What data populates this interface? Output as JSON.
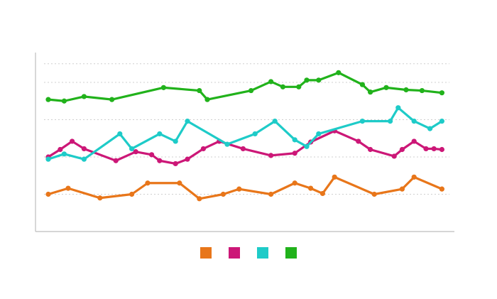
{
  "chart_data": {
    "type": "line",
    "title": "",
    "xlabel": "",
    "ylabel": "",
    "ylim": [
      0,
      240
    ],
    "xlim": [
      0,
      100
    ],
    "grid": true,
    "legend_position": "bottom-center",
    "series": [
      {
        "color": "#e8761a",
        "x": [
          0,
          5,
          13,
          21,
          25,
          33,
          38,
          44,
          48,
          56,
          62,
          66,
          69,
          72,
          82,
          89,
          92,
          99
        ],
        "y": [
          50,
          58,
          45,
          50,
          65,
          65,
          44,
          50,
          57,
          50,
          65,
          58,
          51,
          73,
          50,
          57,
          73,
          57
        ]
      },
      {
        "color": "#cc1777",
        "x": [
          0,
          3,
          6,
          9,
          17,
          22,
          26,
          28,
          32,
          35,
          39,
          43,
          49,
          56,
          62,
          66,
          72,
          78,
          81,
          87,
          89,
          92,
          95,
          97,
          99
        ],
        "y": [
          100,
          110,
          121,
          111,
          95,
          107,
          103,
          95,
          91,
          97,
          111,
          121,
          111,
          102,
          105,
          120,
          135,
          121,
          110,
          101,
          110,
          121,
          111,
          111,
          110
        ]
      },
      {
        "color": "#1ecbc8",
        "x": [
          0,
          4,
          9,
          18,
          21,
          28,
          32,
          35,
          45,
          52,
          57,
          62,
          65,
          68,
          79,
          86,
          88,
          92,
          96,
          99
        ],
        "y": [
          97,
          104,
          97,
          131,
          111,
          131,
          121,
          148,
          117,
          131,
          148,
          123,
          114,
          131,
          148,
          148,
          166,
          148,
          138,
          148
        ]
      },
      {
        "color": "#21b21b",
        "x": [
          0,
          4,
          9,
          16,
          29,
          38,
          40,
          51,
          56,
          59,
          63,
          65,
          68,
          73,
          79,
          81,
          85,
          90,
          94,
          99
        ],
        "y": [
          177,
          175,
          181,
          177,
          193,
          189,
          177,
          189,
          201,
          194,
          194,
          203,
          203,
          213,
          197,
          187,
          193,
          190,
          189,
          186
        ]
      }
    ]
  }
}
